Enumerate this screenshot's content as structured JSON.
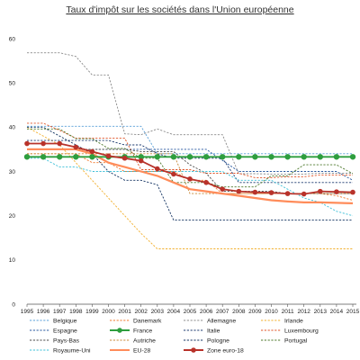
{
  "chart_data": {
    "type": "line",
    "title": "Taux d'impôt sur les sociétés dans l'Union européenne",
    "xlabel": "",
    "ylabel": "",
    "x": [
      1995,
      1996,
      1997,
      1998,
      1999,
      2000,
      2001,
      2002,
      2003,
      2004,
      2005,
      2006,
      2007,
      2008,
      2009,
      2010,
      2011,
      2012,
      2013,
      2014,
      2015
    ],
    "ylim": [
      0,
      60
    ],
    "yticks": [
      0,
      10,
      20,
      30,
      40,
      50,
      60
    ],
    "grid": false,
    "legend_position": "bottom",
    "series": [
      {
        "name": "Belgique",
        "color": "#5aa0d8",
        "style": "dashed",
        "values": [
          40.2,
          40.2,
          40.2,
          40.2,
          40.2,
          40.2,
          40.2,
          40.2,
          34,
          34,
          34,
          34,
          34,
          34,
          34,
          34,
          34,
          34,
          34,
          34,
          34
        ]
      },
      {
        "name": "Danemark",
        "color": "#f07a2e",
        "style": "dashed",
        "values": [
          34,
          34,
          34,
          34,
          32,
          32,
          30,
          30,
          30,
          30,
          28,
          28,
          25,
          25,
          25,
          25,
          25,
          25,
          25,
          24.5,
          23.5
        ]
      },
      {
        "name": "Allemagne",
        "color": "#8c8c8c",
        "style": "dashed",
        "values": [
          56.8,
          56.8,
          56.8,
          56,
          51.8,
          51.8,
          38.5,
          38.3,
          39.6,
          38.3,
          38.3,
          38.3,
          38.3,
          29.5,
          29.5,
          29.4,
          29.4,
          29.4,
          29.6,
          29.6,
          29.6
        ]
      },
      {
        "name": "Irlande",
        "color": "#f2b132",
        "style": "dashed",
        "values": [
          40,
          38,
          36,
          32,
          28,
          24,
          20,
          16,
          12.5,
          12.5,
          12.5,
          12.5,
          12.5,
          12.5,
          12.5,
          12.5,
          12.5,
          12.5,
          12.5,
          12.5,
          12.5
        ]
      },
      {
        "name": "Espagne",
        "color": "#2a5aa0",
        "style": "dashed",
        "values": [
          35,
          35,
          35,
          35,
          35,
          35,
          35,
          35,
          35,
          35,
          35,
          35,
          32.5,
          30,
          30,
          30,
          30,
          30,
          30,
          30,
          28
        ]
      },
      {
        "name": "France",
        "color": "#2e9e3e",
        "style": "marker",
        "values": [
          33.3,
          33.3,
          33.3,
          33.3,
          33.3,
          33.3,
          33.3,
          33.3,
          33.3,
          33.3,
          33.3,
          33.3,
          33.3,
          33.3,
          33.3,
          33.3,
          33.3,
          33.3,
          33.3,
          33.3,
          33.3
        ]
      },
      {
        "name": "Italie",
        "color": "#1f3c70",
        "style": "dashed",
        "values": [
          37,
          37,
          37,
          37,
          37,
          37,
          36,
          36,
          34,
          33,
          33,
          33,
          33,
          27.5,
          27.5,
          27.5,
          27.5,
          27.5,
          27.5,
          27.5,
          27.5
        ]
      },
      {
        "name": "Luxembourg",
        "color": "#e0562a",
        "style": "dashed",
        "values": [
          40.9,
          40.9,
          39.3,
          37.5,
          37.5,
          37.5,
          37.5,
          30.4,
          30.4,
          30.4,
          30.4,
          29.6,
          29.6,
          29.6,
          28.6,
          28.6,
          28.8,
          28.8,
          29.2,
          29.2,
          29.2
        ]
      },
      {
        "name": "Pays-Bas",
        "color": "#4a4a4a",
        "style": "dashed",
        "values": [
          35,
          35,
          35,
          35,
          35,
          35,
          35,
          34.5,
          34.5,
          34.5,
          31.5,
          29.6,
          25.5,
          25.5,
          25.5,
          25.5,
          25,
          25,
          25,
          25,
          25
        ]
      },
      {
        "name": "Autriche",
        "color": "#c98a3a",
        "style": "dashed",
        "values": [
          34,
          34,
          34,
          34,
          34,
          34,
          34,
          34,
          34,
          34,
          25,
          25,
          25,
          25,
          25,
          25,
          25,
          25,
          25,
          25,
          25
        ]
      },
      {
        "name": "Pologne",
        "color": "#163563",
        "style": "dashed",
        "values": [
          40,
          40,
          38,
          36,
          34,
          30,
          28,
          28,
          27,
          19,
          19,
          19,
          19,
          19,
          19,
          19,
          19,
          19,
          19,
          19,
          19
        ]
      },
      {
        "name": "Portugal",
        "color": "#4f7a2e",
        "style": "dashed",
        "values": [
          39.6,
          39.6,
          39.6,
          37.4,
          37.4,
          35.2,
          35.2,
          33,
          33,
          27.5,
          27.5,
          27.5,
          26.5,
          26.5,
          26.5,
          29,
          29,
          31.5,
          31.5,
          31.5,
          29.5
        ]
      },
      {
        "name": "Royaume-Uni",
        "color": "#3ec0d8",
        "style": "dashed",
        "values": [
          33,
          33,
          31,
          31,
          30,
          30,
          30,
          30,
          30,
          30,
          30,
          30,
          30,
          28,
          28,
          28,
          26,
          24,
          23,
          21,
          20
        ]
      },
      {
        "name": "EU-28",
        "color": "#ff8c5a",
        "style": "solid",
        "values": [
          35,
          35,
          35,
          35,
          34,
          32,
          31,
          30,
          29,
          27.5,
          26,
          25.5,
          25,
          24.5,
          24,
          23.5,
          23.2,
          23,
          23,
          22.9,
          22.8
        ]
      },
      {
        "name": "Zone euro-18",
        "color": "#b8322a",
        "style": "marker",
        "values": [
          36.3,
          36.3,
          36.3,
          35.5,
          34.5,
          33.5,
          33,
          32.4,
          30.6,
          29.4,
          28.3,
          27.5,
          26,
          25.5,
          25.3,
          25.2,
          25,
          24.9,
          25.5,
          25.4,
          25.3
        ]
      }
    ]
  }
}
